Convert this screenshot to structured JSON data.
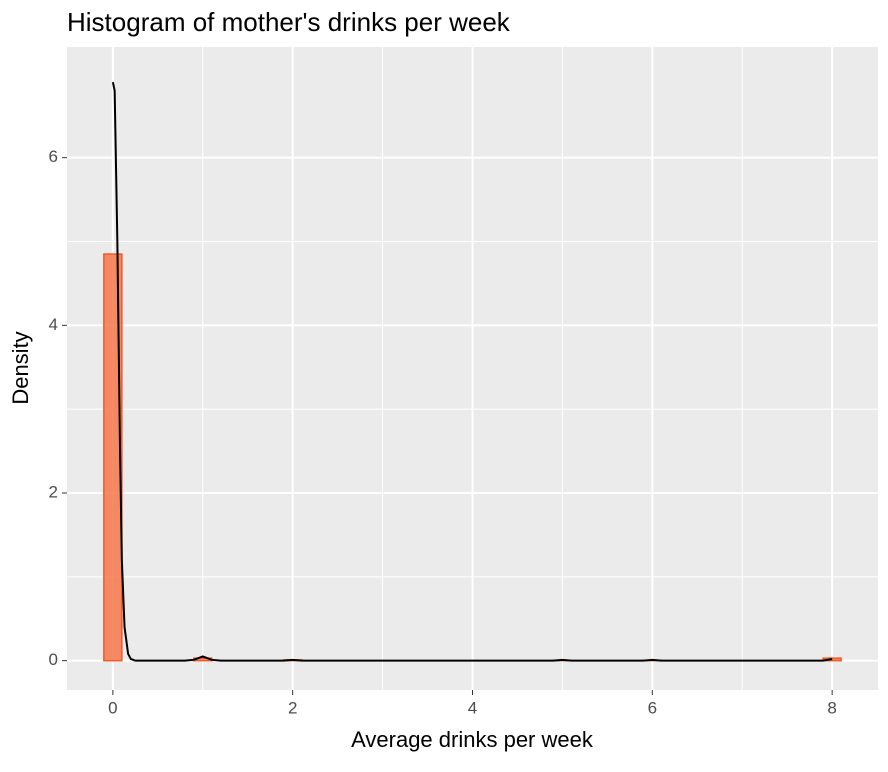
{
  "chart_data": {
    "type": "histogram",
    "title": "Histogram of mother's drinks per week",
    "x_label": "Average drinks per week",
    "y_label": "Density",
    "bins": [
      -0.1,
      0.1,
      0.3,
      0.5,
      0.7,
      0.9,
      1.1,
      1.3,
      1.5,
      1.7,
      1.9,
      2.1,
      2.3,
      2.5,
      2.7,
      2.9,
      3.1,
      3.3,
      3.5,
      3.7,
      3.9,
      4.1,
      4.3,
      4.5,
      4.7,
      4.9,
      5.1,
      5.3,
      5.5,
      5.7,
      5.9,
      6.1,
      6.3,
      6.5,
      6.7,
      6.9,
      7.1,
      7.3,
      7.5,
      7.7,
      7.9,
      8.1
    ],
    "values": [
      4.85,
      0,
      0,
      0,
      0,
      0.03,
      0,
      0,
      0,
      0,
      0.01,
      0,
      0,
      0,
      0,
      0,
      0,
      0,
      0,
      0,
      0,
      0,
      0,
      0,
      0,
      0.005,
      0,
      0,
      0,
      0,
      0.005,
      0,
      0,
      0,
      0,
      0,
      0,
      0,
      0,
      0,
      0.03
    ],
    "color": "#f4774b",
    "edge_color": "#f05a28",
    "density": {
      "color": "#000000",
      "x": [
        0,
        0.02,
        0.05,
        0.08,
        0.1,
        0.13,
        0.17,
        0.2,
        0.25,
        0.8,
        0.9,
        1,
        1.1,
        1.2,
        1.9,
        2,
        2.1,
        4.9,
        5,
        5.1,
        5.9,
        6,
        6.1,
        7.9,
        8
      ],
      "values": [
        6.9,
        6.8,
        5,
        2.5,
        1.2,
        0.4,
        0.08,
        0.02,
        0,
        0,
        0.01,
        0.05,
        0.01,
        0,
        0,
        0.01,
        0,
        0,
        0.01,
        0,
        0,
        0.01,
        0,
        0,
        0.02
      ]
    },
    "xlim": [
      -0.51,
      8.51
    ],
    "xticks": [
      0,
      2,
      4,
      6,
      8
    ],
    "ylim": [
      -0.35,
      7.32
    ],
    "yticks": [
      0,
      2,
      4,
      6
    ],
    "grid": true
  }
}
